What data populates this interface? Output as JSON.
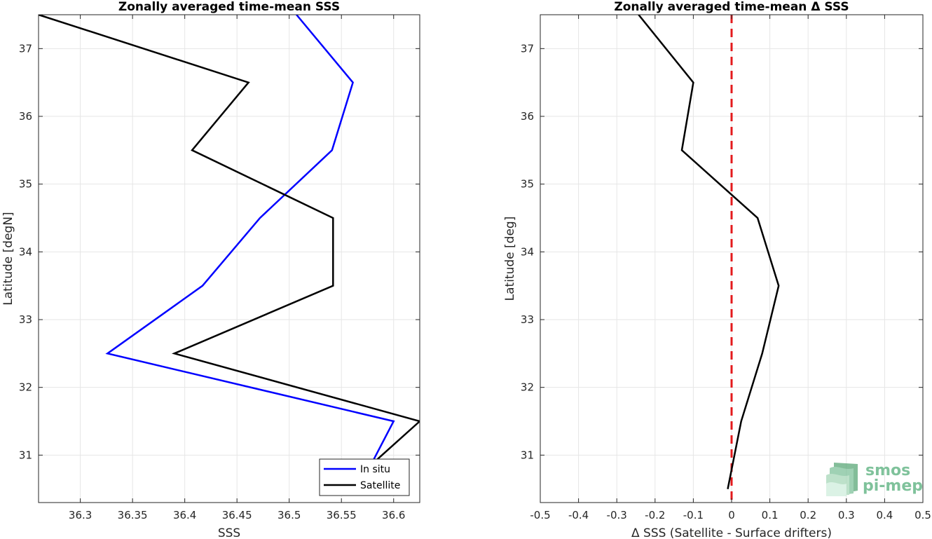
{
  "colors": {
    "in_situ": "#0000ff",
    "satellite": "#000000",
    "zero_line": "#e31a1c",
    "grid": "#e6e6e6",
    "axis": "#262626",
    "logo": "#7fc29b"
  },
  "logo": {
    "line1": "smos",
    "line2": "pi-mep",
    "icon": "layered-waves-icon"
  },
  "chart_data": [
    {
      "type": "line",
      "title": "Zonally averaged time-mean SSS",
      "xlabel": "SSS",
      "ylabel": "Latitude [degN]",
      "xlim": [
        36.26,
        36.625
      ],
      "ylim": [
        30.3,
        37.5
      ],
      "xticks": [
        36.3,
        36.35,
        36.4,
        36.45,
        36.5,
        36.55,
        36.6
      ],
      "xtick_labels": [
        "36.3",
        "36.35",
        "36.4",
        "36.45",
        "36.5",
        "36.55",
        "36.6"
      ],
      "yticks": [
        31,
        32,
        33,
        34,
        35,
        36,
        37
      ],
      "ytick_labels": [
        "31",
        "32",
        "33",
        "34",
        "35",
        "36",
        "37"
      ],
      "grid": true,
      "legend_position": "bottom-right",
      "series": [
        {
          "name": "In situ",
          "color": "#0000ff",
          "points": [
            [
              36.507,
              37.5
            ],
            [
              36.561,
              36.5
            ],
            [
              36.541,
              35.5
            ],
            [
              36.472,
              34.5
            ],
            [
              36.417,
              33.5
            ],
            [
              36.326,
              32.5
            ],
            [
              36.6,
              31.5
            ],
            [
              36.578,
              30.85
            ]
          ]
        },
        {
          "name": "Satellite",
          "color": "#000000",
          "points": [
            [
              36.26,
              37.5
            ],
            [
              36.461,
              36.5
            ],
            [
              36.407,
              35.5
            ],
            [
              36.542,
              34.5
            ],
            [
              36.542,
              33.5
            ],
            [
              36.39,
              32.5
            ],
            [
              36.625,
              31.5
            ],
            [
              36.578,
              30.85
            ]
          ]
        }
      ]
    },
    {
      "type": "line",
      "title": "Zonally averaged time-mean Δ SSS",
      "xlabel": "Δ SSS (Satellite - Surface drifters)",
      "ylabel": "Latitude [deg]",
      "xlim": [
        -0.5,
        0.5
      ],
      "ylim": [
        30.3,
        37.5
      ],
      "xticks": [
        -0.5,
        -0.4,
        -0.3,
        -0.2,
        -0.1,
        0,
        0.1,
        0.2,
        0.3,
        0.4,
        0.5
      ],
      "xtick_labels": [
        "-0.5",
        "-0.4",
        "-0.3",
        "-0.2",
        "-0.1",
        "0",
        "0.1",
        "0.2",
        "0.3",
        "0.4",
        "0.5"
      ],
      "yticks": [
        31,
        32,
        33,
        34,
        35,
        36,
        37
      ],
      "ytick_labels": [
        "31",
        "32",
        "33",
        "34",
        "35",
        "36",
        "37"
      ],
      "grid": true,
      "reference_line": {
        "x": 0,
        "style": "dashed",
        "color": "#e31a1c"
      },
      "series": [
        {
          "color": "#000000",
          "points": [
            [
              -0.243,
              37.5
            ],
            [
              -0.1,
              36.5
            ],
            [
              -0.13,
              35.5
            ],
            [
              0.068,
              34.5
            ],
            [
              0.123,
              33.5
            ],
            [
              0.08,
              32.5
            ],
            [
              0.025,
              31.5
            ],
            [
              -0.01,
              30.5
            ]
          ]
        }
      ]
    }
  ]
}
